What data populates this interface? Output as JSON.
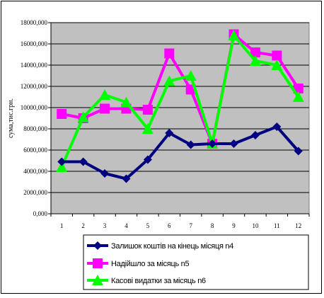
{
  "chart_data": {
    "type": "line",
    "title": "",
    "xlabel": "",
    "ylabel": "сума,тис.грн.",
    "x": [
      1,
      2,
      3,
      4,
      5,
      6,
      7,
      8,
      9,
      10,
      11,
      12
    ],
    "ylim": [
      0,
      18000
    ],
    "yticks": [
      0,
      2000,
      4000,
      6000,
      8000,
      10000,
      12000,
      14000,
      16000,
      18000
    ],
    "ytick_labels": [
      "0,000",
      "2000,000",
      "4000,000",
      "6000,000",
      "8000,000",
      "10000,000",
      "12000,000",
      "14000,000",
      "16000,000",
      "18000,000"
    ],
    "grid": true,
    "legend_placement": "bottom",
    "series": [
      {
        "name": "Залишок коштів на кінець місяця n4",
        "color": "#000080",
        "marker": "diamond",
        "values": [
          4900,
          4900,
          3800,
          3300,
          5100,
          7600,
          6500,
          6600,
          6600,
          7400,
          8200,
          5900
        ]
      },
      {
        "name": "Надійшло за місяць n5",
        "color": "#ff00ff",
        "marker": "square",
        "values": [
          9400,
          9000,
          9900,
          9900,
          9800,
          15100,
          11700,
          6600,
          16900,
          15200,
          14900,
          11800
        ]
      },
      {
        "name": "Касові видатки за місяць n6",
        "color": "#00ff00",
        "marker": "triangle",
        "values": [
          4400,
          9100,
          11200,
          10500,
          8000,
          12500,
          13000,
          6600,
          16800,
          14400,
          14000,
          11000
        ]
      }
    ]
  }
}
